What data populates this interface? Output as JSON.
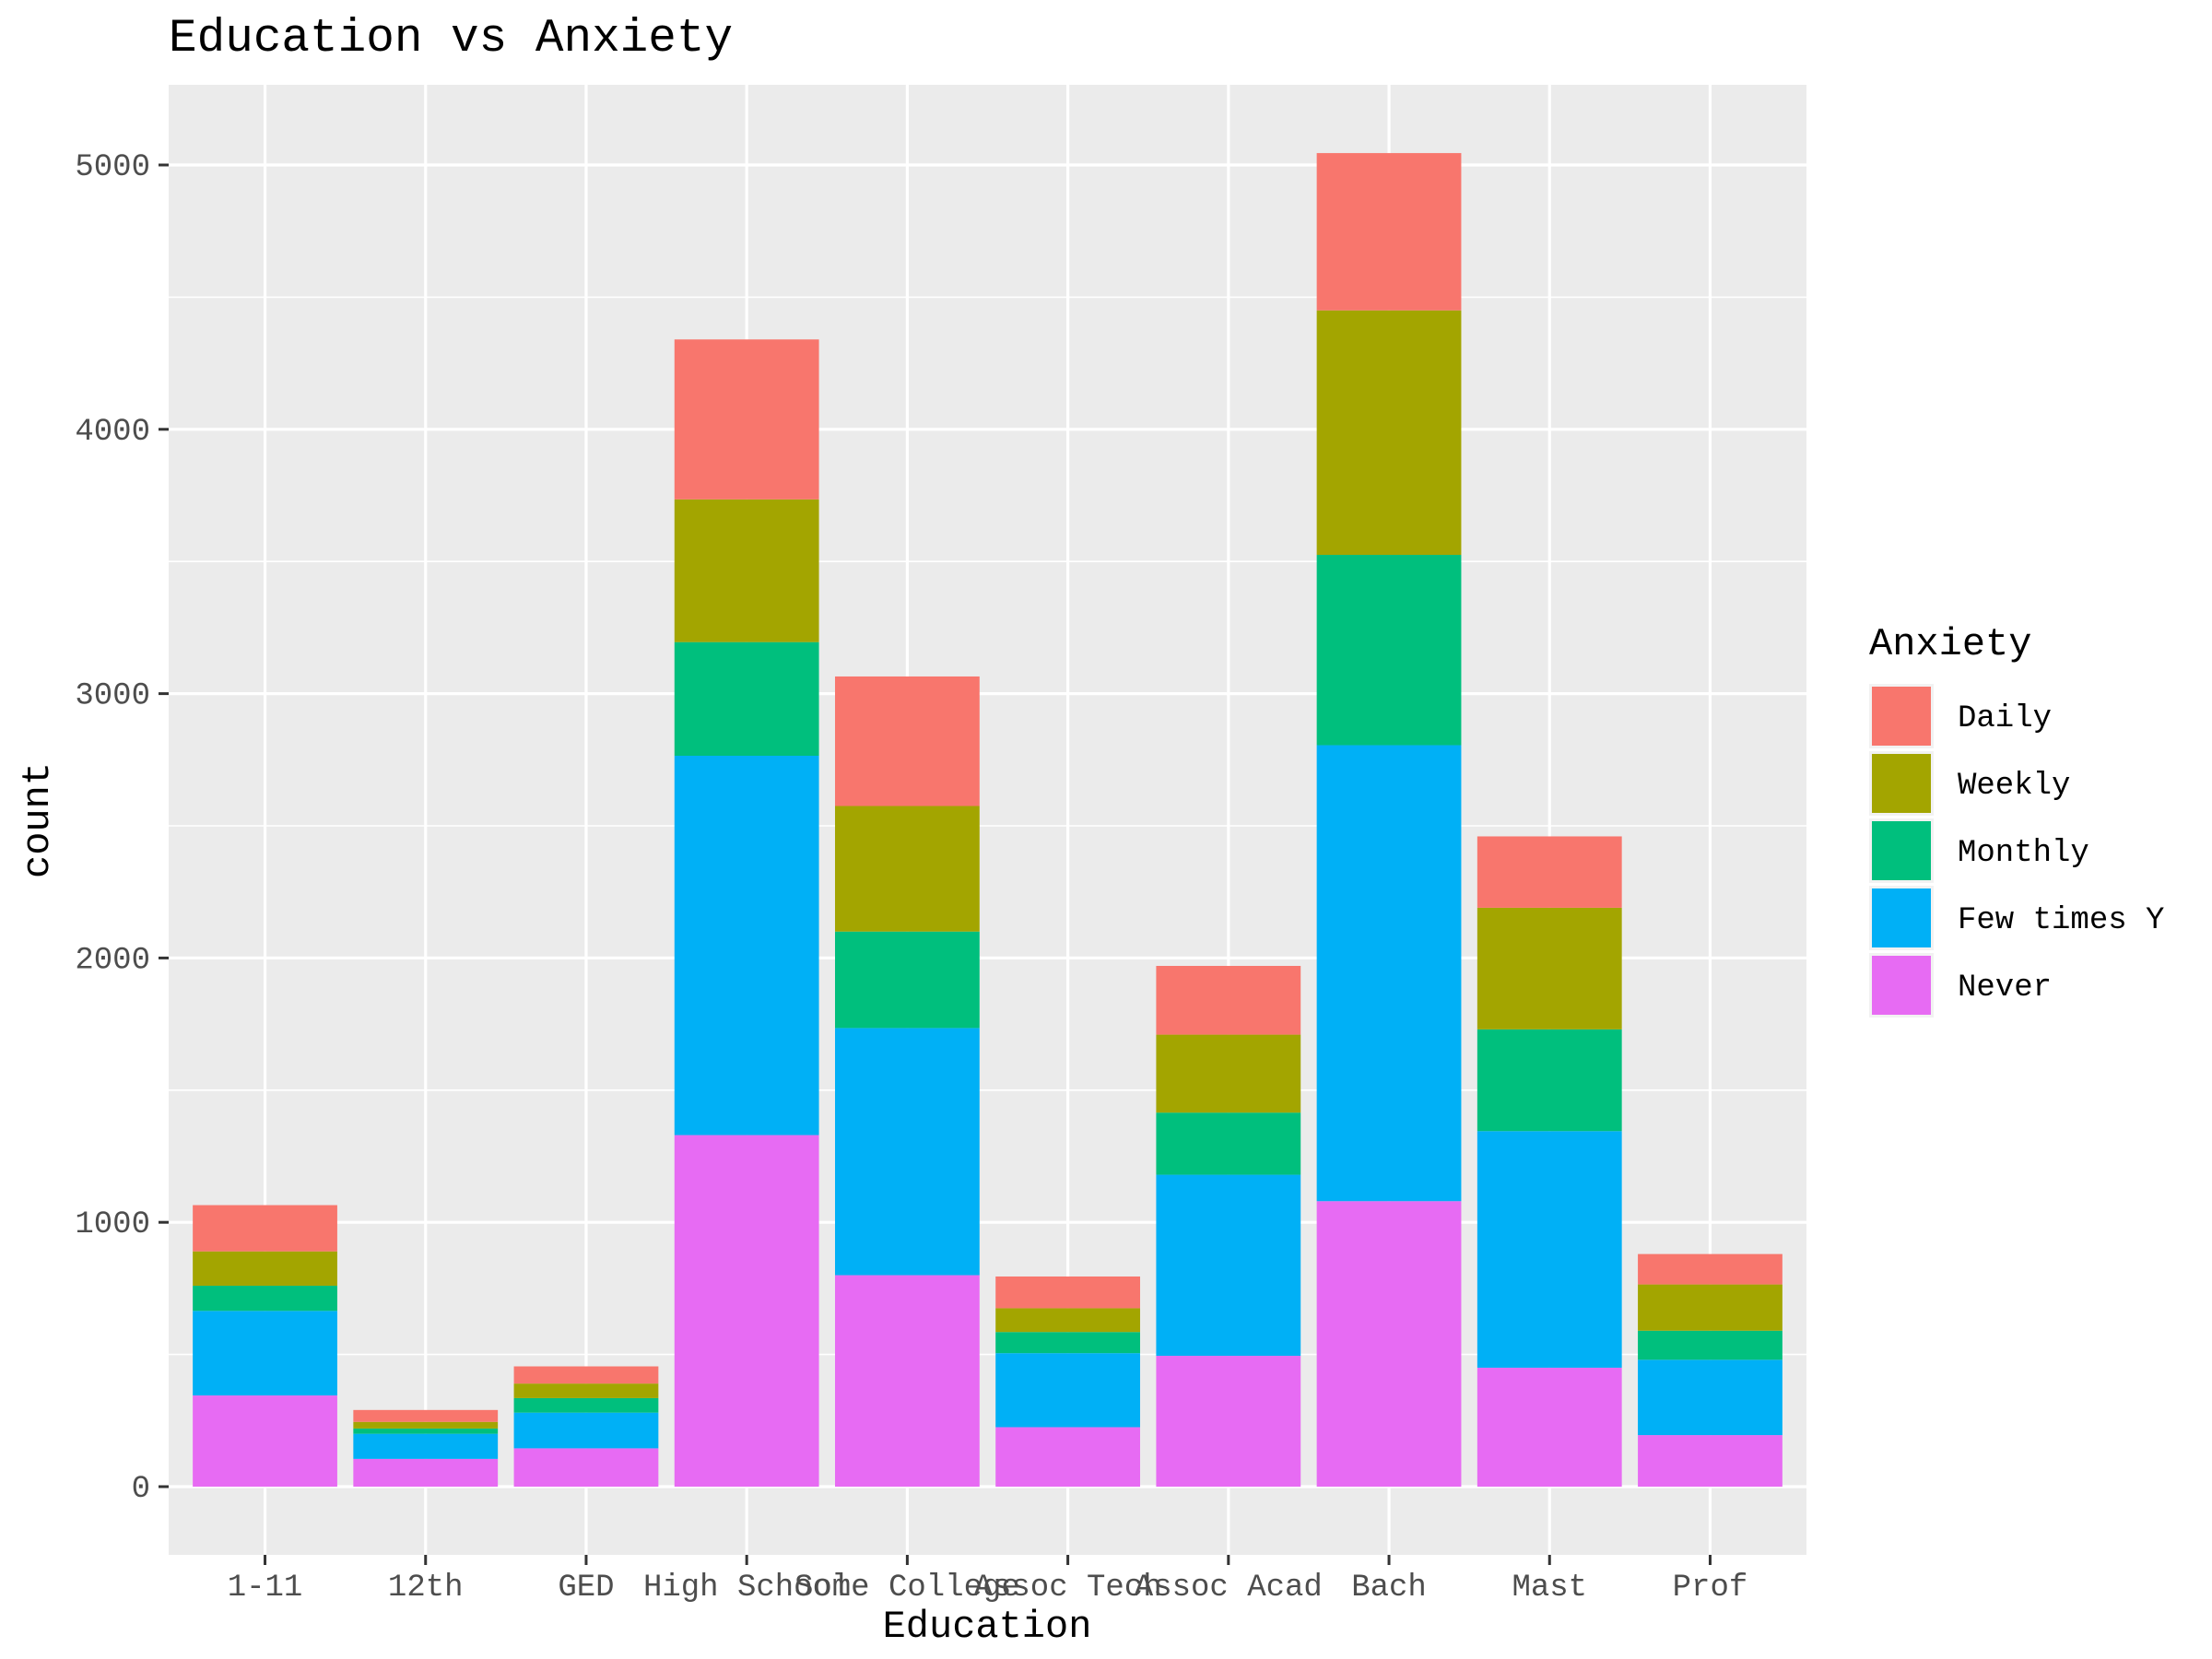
{
  "chart_data": {
    "type": "bar",
    "stacked": true,
    "title": "Education vs Anxiety",
    "xlabel": "Education",
    "ylabel": "count",
    "ylim": [
      0,
      5300
    ],
    "yticks": [
      0,
      1000,
      2000,
      3000,
      4000,
      5000
    ],
    "grid": true,
    "legend_position": "right",
    "legend_title": "Anxiety",
    "categories": [
      "1-11",
      "12th",
      "GED",
      "High School",
      "Some College",
      "Assoc Tech",
      "Assoc Acad",
      "Bach",
      "Mast",
      "Prof"
    ],
    "series": [
      {
        "name": "Never",
        "color": "#E76BF3",
        "values": [
          345,
          105,
          145,
          1330,
          800,
          225,
          495,
          1080,
          450,
          195
        ]
      },
      {
        "name": "Few times Y",
        "color": "#00B0F6",
        "values": [
          320,
          95,
          135,
          1435,
          935,
          280,
          685,
          1725,
          895,
          285
        ]
      },
      {
        "name": "Monthly",
        "color": "#00BF7D",
        "values": [
          95,
          20,
          55,
          430,
          365,
          80,
          235,
          720,
          385,
          110
        ]
      },
      {
        "name": "Weekly",
        "color": "#A3A500",
        "values": [
          130,
          25,
          55,
          540,
          475,
          90,
          295,
          925,
          460,
          175
        ]
      },
      {
        "name": "Daily",
        "color": "#F8766D",
        "values": [
          175,
          45,
          65,
          605,
          490,
          120,
          260,
          595,
          270,
          115
        ]
      }
    ],
    "legend_order": [
      "Daily",
      "Weekly",
      "Monthly",
      "Few times Y",
      "Never"
    ]
  }
}
